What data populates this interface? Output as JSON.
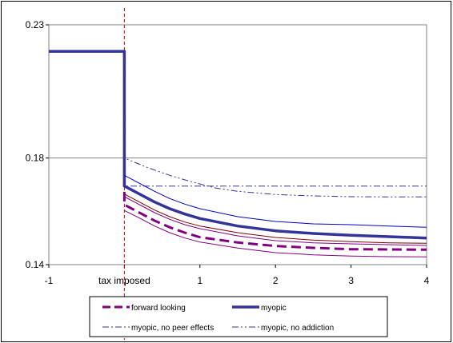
{
  "chart_data": {
    "type": "line",
    "title": "",
    "xlabel": "",
    "ylabel": "",
    "x_ticks": [
      {
        "x": -1,
        "label": "-1"
      },
      {
        "x": 0,
        "label": "tax imposed"
      },
      {
        "x": 1,
        "label": "1"
      },
      {
        "x": 2,
        "label": "2"
      },
      {
        "x": 3,
        "label": "3"
      },
      {
        "x": 4,
        "label": "4"
      }
    ],
    "y_ticks": [
      {
        "y": 0.14,
        "label": "0.14"
      },
      {
        "y": 0.18,
        "label": "0.18"
      },
      {
        "y": 0.23,
        "label": "0.23"
      }
    ],
    "xlim": [
      -1,
      4
    ],
    "ylim": [
      0.14,
      0.23
    ],
    "grid": "horizontal",
    "vertical_marker": {
      "x": 0,
      "color": "#cc0000",
      "style": "dashed"
    },
    "legend_position": "bottom",
    "series": [
      {
        "name": "forward looking",
        "color": "#800080",
        "style": "dashed",
        "width": 3,
        "x": [
          -1,
          0,
          0,
          0.2,
          0.4,
          0.6,
          0.8,
          1,
          1.5,
          2,
          2.5,
          3,
          3.5,
          4
        ],
        "y": [
          0.22,
          0.22,
          0.1625,
          0.1595,
          0.1565,
          0.154,
          0.152,
          0.1503,
          0.1483,
          0.147,
          0.1463,
          0.1458,
          0.1457,
          0.1456
        ],
        "in_legend": true
      },
      {
        "name": "myopic",
        "color": "#333399",
        "style": "solid",
        "width": 3.5,
        "x": [
          -1,
          0,
          0,
          0.2,
          0.4,
          0.6,
          0.8,
          1,
          1.5,
          2,
          2.5,
          3,
          3.5,
          4
        ],
        "y": [
          0.22,
          0.22,
          0.1695,
          0.1665,
          0.1635,
          0.161,
          0.159,
          0.1573,
          0.1545,
          0.1527,
          0.1517,
          0.151,
          0.1505,
          0.15
        ],
        "in_legend": true
      },
      {
        "name": "myopic, no peer effects",
        "color": "#333399",
        "style": "dashdot",
        "width": 1,
        "x": [
          0,
          0,
          1,
          2,
          3,
          4
        ],
        "y": [
          0.22,
          0.1695,
          0.1695,
          0.1695,
          0.1695,
          0.1695
        ],
        "in_legend": true
      },
      {
        "name": "myopic, no addiction",
        "color": "#333399",
        "style": "dashdotdot",
        "width": 1,
        "x": [
          0,
          0,
          0.3,
          0.6,
          0.9,
          1.2,
          1.5,
          2,
          2.5,
          3,
          3.5,
          4
        ],
        "y": [
          0.22,
          0.18,
          0.1765,
          0.1735,
          0.171,
          0.1688,
          0.1675,
          0.1663,
          0.1658,
          0.1655,
          0.1654,
          0.1654
        ],
        "in_legend": true
      },
      {
        "name": "",
        "color": "#0000cc",
        "style": "solid",
        "width": 1,
        "x": [
          0,
          0.2,
          0.4,
          0.6,
          0.8,
          1,
          1.5,
          2,
          2.5,
          3,
          3.5,
          4
        ],
        "y": [
          0.1735,
          0.1705,
          0.1675,
          0.1648,
          0.1627,
          0.161,
          0.158,
          0.1562,
          0.1553,
          0.155,
          0.1545,
          0.154
        ],
        "in_legend": false
      },
      {
        "name": "",
        "color": "#800000",
        "style": "solid",
        "width": 1,
        "x": [
          0,
          0.2,
          0.4,
          0.6,
          0.8,
          1,
          1.5,
          2,
          2.5,
          3,
          3.5,
          4
        ],
        "y": [
          0.1665,
          0.1635,
          0.1605,
          0.158,
          0.156,
          0.1545,
          0.152,
          0.1502,
          0.1492,
          0.1486,
          0.1482,
          0.148
        ],
        "in_legend": false
      },
      {
        "name": "",
        "color": "#800080",
        "style": "solid",
        "width": 1,
        "x": [
          0,
          0.2,
          0.4,
          0.6,
          0.8,
          1,
          1.5,
          2,
          2.5,
          3,
          3.5,
          4
        ],
        "y": [
          0.1603,
          0.1575,
          0.1545,
          0.152,
          0.15,
          0.1485,
          0.1462,
          0.1445,
          0.1437,
          0.1432,
          0.143,
          0.1429
        ],
        "in_legend": false
      },
      {
        "name": "",
        "color": "#800080",
        "style": "solid",
        "width": 1,
        "x": [
          0,
          0.2,
          0.4,
          0.6,
          0.8,
          1,
          1.5,
          2,
          2.5,
          3,
          3.5,
          4
        ],
        "y": [
          0.1655,
          0.1625,
          0.1595,
          0.157,
          0.155,
          0.1535,
          0.1508,
          0.149,
          0.1482,
          0.1478,
          0.1475,
          0.1472
        ],
        "in_legend": false
      }
    ]
  }
}
